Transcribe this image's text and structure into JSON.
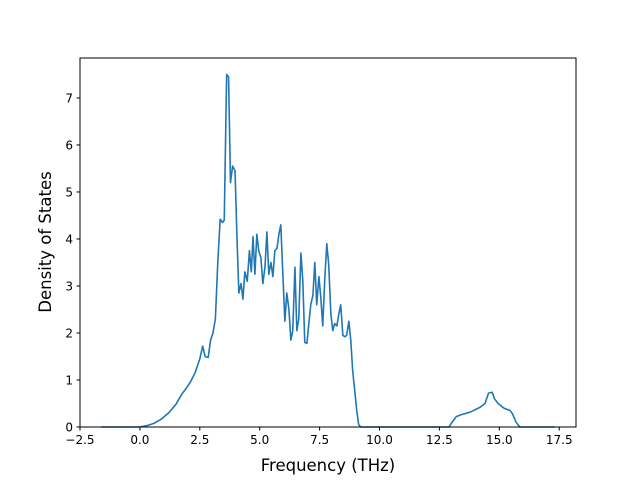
{
  "chart_data": {
    "type": "line",
    "title": "",
    "xlabel": "Frequency (THz)",
    "ylabel": "Density of States",
    "xlim": [
      -2.5,
      18.2
    ],
    "ylim": [
      0,
      7.85
    ],
    "xticks": [
      -2.5,
      0.0,
      2.5,
      5.0,
      7.5,
      10.0,
      12.5,
      15.0,
      17.5
    ],
    "xtick_labels": [
      "−2.5",
      "0.0",
      "2.5",
      "5.0",
      "7.5",
      "10.0",
      "12.5",
      "15.0",
      "17.5"
    ],
    "yticks": [
      0,
      1,
      2,
      3,
      4,
      5,
      6,
      7
    ],
    "ytick_labels": [
      "0",
      "1",
      "2",
      "3",
      "4",
      "5",
      "6",
      "7"
    ],
    "grid": false,
    "legend": "none",
    "series": [
      {
        "color": "#1f77b4",
        "x": [
          -1.6,
          -1.0,
          -0.5,
          0.0,
          0.3,
          0.6,
          0.9,
          1.2,
          1.5,
          1.75,
          1.9,
          2.1,
          2.3,
          2.5,
          2.62,
          2.72,
          2.85,
          2.95,
          3.05,
          3.15,
          3.25,
          3.35,
          3.45,
          3.52,
          3.62,
          3.7,
          3.78,
          3.87,
          3.97,
          4.05,
          4.13,
          4.22,
          4.3,
          4.38,
          4.48,
          4.57,
          4.65,
          4.72,
          4.8,
          4.88,
          4.96,
          5.05,
          5.13,
          5.22,
          5.3,
          5.38,
          5.47,
          5.55,
          5.63,
          5.72,
          5.8,
          5.88,
          5.97,
          6.05,
          6.13,
          6.22,
          6.3,
          6.38,
          6.47,
          6.55,
          6.63,
          6.72,
          6.8,
          6.88,
          6.97,
          7.05,
          7.13,
          7.22,
          7.3,
          7.38,
          7.47,
          7.55,
          7.63,
          7.72,
          7.8,
          7.88,
          7.97,
          8.05,
          8.13,
          8.22,
          8.3,
          8.38,
          8.47,
          8.55,
          8.63,
          8.72,
          8.8,
          8.88,
          8.97,
          9.05,
          9.13,
          9.22,
          9.3,
          9.38,
          9.47,
          9.55,
          9.63,
          9.72,
          9.85,
          10.0,
          11.0,
          12.0,
          12.9,
          13.0,
          13.2,
          13.4,
          13.8,
          14.2,
          14.4,
          14.55,
          14.7,
          14.8,
          14.95,
          15.2,
          15.45,
          15.55,
          15.7,
          15.85,
          16.5,
          17.0,
          17.3
        ],
        "y": [
          0,
          0,
          0,
          0,
          0.03,
          0.08,
          0.17,
          0.3,
          0.48,
          0.7,
          0.8,
          0.95,
          1.15,
          1.45,
          1.72,
          1.5,
          1.48,
          1.85,
          2.0,
          2.3,
          3.5,
          4.42,
          4.35,
          4.4,
          7.5,
          7.45,
          5.2,
          5.55,
          5.45,
          4.05,
          2.85,
          3.05,
          2.72,
          3.3,
          3.1,
          3.75,
          3.3,
          4.05,
          3.25,
          4.1,
          3.75,
          3.6,
          3.05,
          3.4,
          4.15,
          3.25,
          3.5,
          3.2,
          3.75,
          3.8,
          4.1,
          4.3,
          3.2,
          2.25,
          2.85,
          2.5,
          1.85,
          2.05,
          3.4,
          2.05,
          2.3,
          3.7,
          3.1,
          1.8,
          1.78,
          2.2,
          2.6,
          2.8,
          3.5,
          2.6,
          3.2,
          2.75,
          2.15,
          3.2,
          3.9,
          3.45,
          2.4,
          2.05,
          2.2,
          2.15,
          2.4,
          2.6,
          1.95,
          1.92,
          1.95,
          2.25,
          1.85,
          1.2,
          0.75,
          0.35,
          0.05,
          0,
          0,
          0,
          0,
          0,
          0,
          0,
          0,
          0,
          0,
          0,
          0,
          0.08,
          0.22,
          0.26,
          0.32,
          0.42,
          0.5,
          0.72,
          0.74,
          0.6,
          0.5,
          0.4,
          0.35,
          0.28,
          0.1,
          0,
          0,
          0,
          0
        ]
      }
    ]
  }
}
